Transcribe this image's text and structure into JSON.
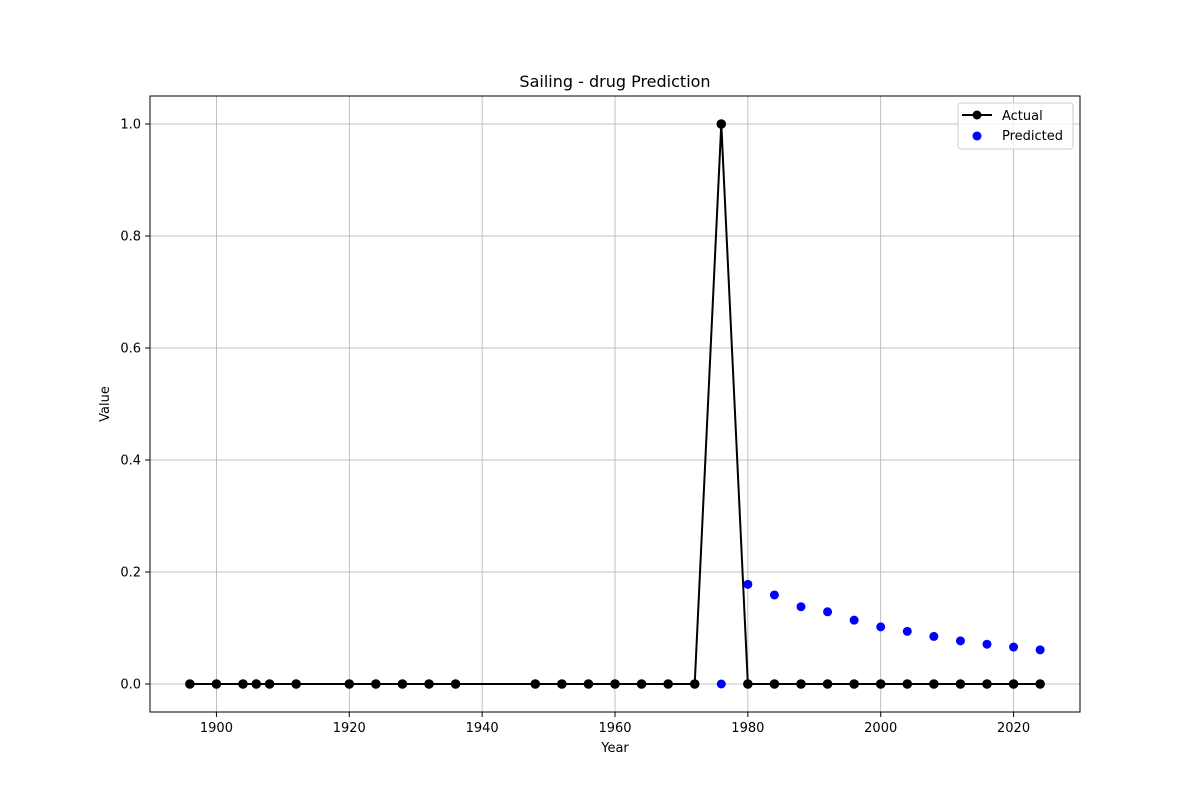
{
  "chart_data": {
    "type": "line",
    "title": "Sailing - drug Prediction",
    "xlabel": "Year",
    "ylabel": "Value",
    "xlim": [
      1890,
      2030
    ],
    "ylim": [
      -0.05,
      1.05
    ],
    "xticks": [
      1900,
      1920,
      1940,
      1960,
      1980,
      2000,
      2020
    ],
    "yticks": [
      0.0,
      0.2,
      0.4,
      0.6,
      0.8,
      1.0
    ],
    "xtick_labels": [
      "1900",
      "1920",
      "1940",
      "1960",
      "1980",
      "2000",
      "2020"
    ],
    "ytick_labels": [
      "0.0",
      "0.2",
      "0.4",
      "0.6",
      "0.8",
      "1.0"
    ],
    "grid": true,
    "legend_position": "top-right",
    "series": [
      {
        "name": "Actual",
        "style": "line-marker",
        "color": "#000000",
        "points": [
          [
            1896,
            0
          ],
          [
            1900,
            0
          ],
          [
            1904,
            0
          ],
          [
            1906,
            0
          ],
          [
            1908,
            0
          ],
          [
            1912,
            0
          ],
          [
            1920,
            0
          ],
          [
            1924,
            0
          ],
          [
            1928,
            0
          ],
          [
            1932,
            0
          ],
          [
            1936,
            0
          ],
          [
            1948,
            0
          ],
          [
            1952,
            0
          ],
          [
            1956,
            0
          ],
          [
            1960,
            0
          ],
          [
            1964,
            0
          ],
          [
            1968,
            0
          ],
          [
            1972,
            0
          ],
          [
            1976,
            1.0
          ],
          [
            1980,
            0
          ],
          [
            1984,
            0
          ],
          [
            1988,
            0
          ],
          [
            1992,
            0
          ],
          [
            1996,
            0
          ],
          [
            2000,
            0
          ],
          [
            2004,
            0
          ],
          [
            2008,
            0
          ],
          [
            2012,
            0
          ],
          [
            2016,
            0
          ],
          [
            2020,
            0
          ],
          [
            2024,
            0
          ]
        ]
      },
      {
        "name": "Predicted",
        "style": "scatter",
        "color": "#0000ff",
        "points": [
          [
            1976,
            0.0
          ],
          [
            1980,
            0.178
          ],
          [
            1984,
            0.159
          ],
          [
            1988,
            0.138
          ],
          [
            1992,
            0.129
          ],
          [
            1996,
            0.114
          ],
          [
            2000,
            0.102
          ],
          [
            2004,
            0.094
          ],
          [
            2008,
            0.085
          ],
          [
            2012,
            0.077
          ],
          [
            2016,
            0.071
          ],
          [
            2020,
            0.066
          ],
          [
            2024,
            0.061
          ]
        ]
      }
    ]
  }
}
